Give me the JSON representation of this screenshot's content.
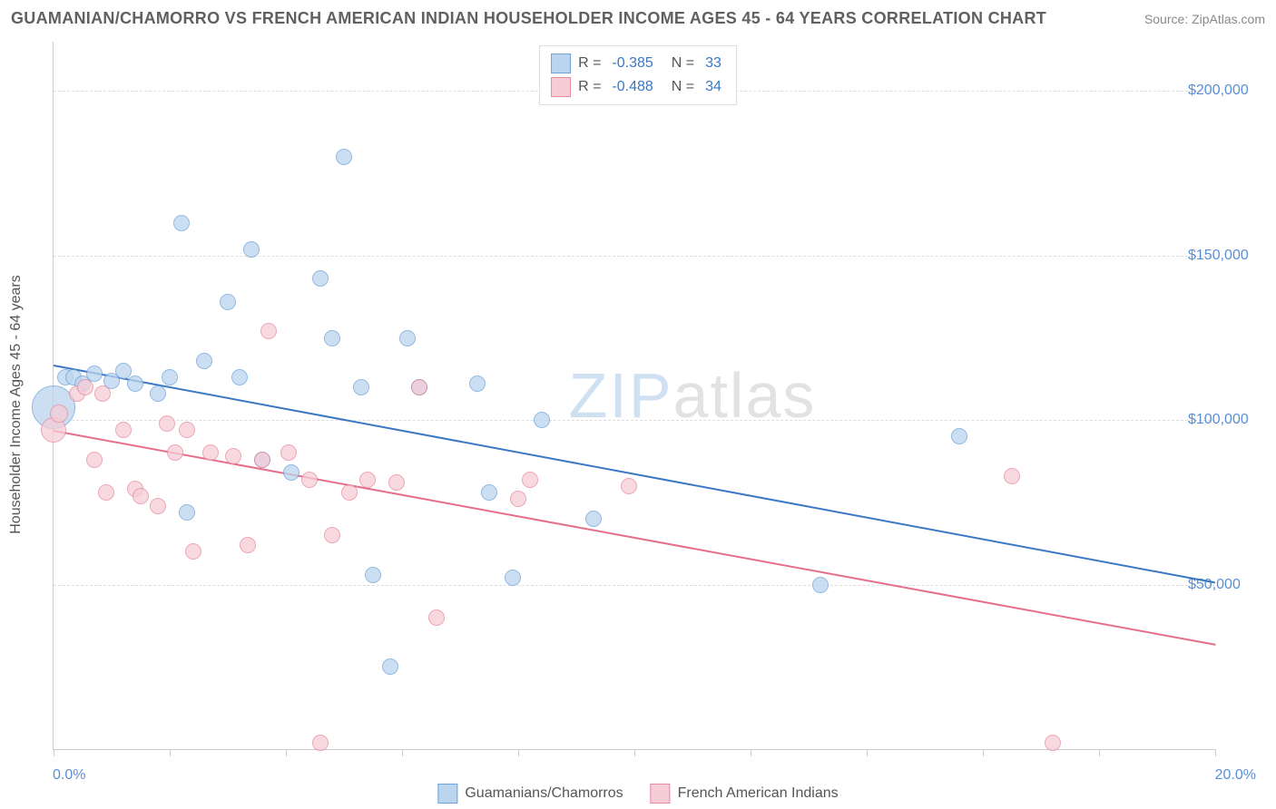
{
  "title": "GUAMANIAN/CHAMORRO VS FRENCH AMERICAN INDIAN HOUSEHOLDER INCOME AGES 45 - 64 YEARS CORRELATION CHART",
  "source_label": "Source: ZipAtlas.com",
  "watermark": {
    "part1": "ZIP",
    "part2": "atlas"
  },
  "yaxis_title": "Householder Income Ages 45 - 64 years",
  "xaxis": {
    "min": 0.0,
    "max": 20.0,
    "label_min": "0.0%",
    "label_max": "20.0%",
    "tick_positions_pct": [
      0,
      10,
      20,
      30,
      40,
      50,
      60,
      70,
      80,
      90,
      100
    ]
  },
  "yaxis": {
    "min": 0,
    "max": 215000,
    "gridlines": [
      {
        "value": 50000,
        "label": "$50,000"
      },
      {
        "value": 100000,
        "label": "$100,000"
      },
      {
        "value": 150000,
        "label": "$150,000"
      },
      {
        "value": 200000,
        "label": "$200,000"
      }
    ]
  },
  "series": [
    {
      "id": "guamanian",
      "label": "Guamanians/Chamorros",
      "fill": "#bcd5ee",
      "stroke": "#6ea2d8",
      "opacity": 0.75,
      "R": "-0.385",
      "N": "33",
      "trend": {
        "color": "#3b78c4",
        "x1_pct": 0,
        "y1": 117000,
        "x2_pct": 100,
        "y2": 51000
      },
      "points": [
        {
          "x": 0.0,
          "y": 104000,
          "r": 24
        },
        {
          "x": 0.2,
          "y": 113000,
          "r": 9
        },
        {
          "x": 0.35,
          "y": 113000,
          "r": 9
        },
        {
          "x": 0.5,
          "y": 111000,
          "r": 9
        },
        {
          "x": 0.7,
          "y": 114000,
          "r": 9
        },
        {
          "x": 1.0,
          "y": 112000,
          "r": 9
        },
        {
          "x": 1.2,
          "y": 115000,
          "r": 9
        },
        {
          "x": 1.4,
          "y": 111000,
          "r": 9
        },
        {
          "x": 2.2,
          "y": 160000,
          "r": 9
        },
        {
          "x": 2.0,
          "y": 113000,
          "r": 9
        },
        {
          "x": 1.8,
          "y": 108000,
          "r": 9
        },
        {
          "x": 2.3,
          "y": 72000,
          "r": 9
        },
        {
          "x": 2.6,
          "y": 118000,
          "r": 9
        },
        {
          "x": 3.0,
          "y": 136000,
          "r": 9
        },
        {
          "x": 3.2,
          "y": 113000,
          "r": 9
        },
        {
          "x": 3.4,
          "y": 152000,
          "r": 9
        },
        {
          "x": 3.6,
          "y": 88000,
          "r": 9
        },
        {
          "x": 4.1,
          "y": 84000,
          "r": 9
        },
        {
          "x": 4.6,
          "y": 143000,
          "r": 9
        },
        {
          "x": 4.8,
          "y": 125000,
          "r": 9
        },
        {
          "x": 5.0,
          "y": 180000,
          "r": 9
        },
        {
          "x": 5.3,
          "y": 110000,
          "r": 9
        },
        {
          "x": 5.5,
          "y": 53000,
          "r": 9
        },
        {
          "x": 5.8,
          "y": 25000,
          "r": 9
        },
        {
          "x": 6.1,
          "y": 125000,
          "r": 9
        },
        {
          "x": 6.3,
          "y": 110000,
          "r": 9
        },
        {
          "x": 7.3,
          "y": 111000,
          "r": 9
        },
        {
          "x": 7.5,
          "y": 78000,
          "r": 9
        },
        {
          "x": 7.9,
          "y": 52000,
          "r": 9
        },
        {
          "x": 8.4,
          "y": 100000,
          "r": 9
        },
        {
          "x": 9.3,
          "y": 70000,
          "r": 9
        },
        {
          "x": 13.2,
          "y": 50000,
          "r": 9
        },
        {
          "x": 15.6,
          "y": 95000,
          "r": 9
        }
      ]
    },
    {
      "id": "french",
      "label": "French American Indians",
      "fill": "#f6cdd6",
      "stroke": "#e68aa0",
      "opacity": 0.75,
      "R": "-0.488",
      "N": "34",
      "trend": {
        "color": "#e56f8a",
        "x1_pct": 0,
        "y1": 97000,
        "x2_pct": 100,
        "y2": 32000
      },
      "points": [
        {
          "x": 0.0,
          "y": 97000,
          "r": 14
        },
        {
          "x": 0.1,
          "y": 102000,
          "r": 10
        },
        {
          "x": 0.4,
          "y": 108000,
          "r": 9
        },
        {
          "x": 0.55,
          "y": 110000,
          "r": 9
        },
        {
          "x": 0.7,
          "y": 88000,
          "r": 9
        },
        {
          "x": 0.85,
          "y": 108000,
          "r": 9
        },
        {
          "x": 0.9,
          "y": 78000,
          "r": 9
        },
        {
          "x": 1.2,
          "y": 97000,
          "r": 9
        },
        {
          "x": 1.4,
          "y": 79000,
          "r": 9
        },
        {
          "x": 1.5,
          "y": 77000,
          "r": 9
        },
        {
          "x": 1.8,
          "y": 74000,
          "r": 9
        },
        {
          "x": 1.95,
          "y": 99000,
          "r": 9
        },
        {
          "x": 2.1,
          "y": 90000,
          "r": 9
        },
        {
          "x": 2.3,
          "y": 97000,
          "r": 9
        },
        {
          "x": 2.4,
          "y": 60000,
          "r": 9
        },
        {
          "x": 2.7,
          "y": 90000,
          "r": 9
        },
        {
          "x": 3.1,
          "y": 89000,
          "r": 9
        },
        {
          "x": 3.35,
          "y": 62000,
          "r": 9
        },
        {
          "x": 3.6,
          "y": 88000,
          "r": 9
        },
        {
          "x": 3.7,
          "y": 127000,
          "r": 9
        },
        {
          "x": 4.05,
          "y": 90000,
          "r": 9
        },
        {
          "x": 4.4,
          "y": 82000,
          "r": 9
        },
        {
          "x": 4.6,
          "y": 2000,
          "r": 9
        },
        {
          "x": 4.8,
          "y": 65000,
          "r": 9
        },
        {
          "x": 5.1,
          "y": 78000,
          "r": 9
        },
        {
          "x": 5.4,
          "y": 82000,
          "r": 9
        },
        {
          "x": 5.9,
          "y": 81000,
          "r": 9
        },
        {
          "x": 6.3,
          "y": 110000,
          "r": 9
        },
        {
          "x": 6.6,
          "y": 40000,
          "r": 9
        },
        {
          "x": 8.0,
          "y": 76000,
          "r": 9
        },
        {
          "x": 8.2,
          "y": 82000,
          "r": 9
        },
        {
          "x": 9.9,
          "y": 80000,
          "r": 9
        },
        {
          "x": 16.5,
          "y": 83000,
          "r": 9
        },
        {
          "x": 17.2,
          "y": 2000,
          "r": 9
        }
      ]
    }
  ]
}
